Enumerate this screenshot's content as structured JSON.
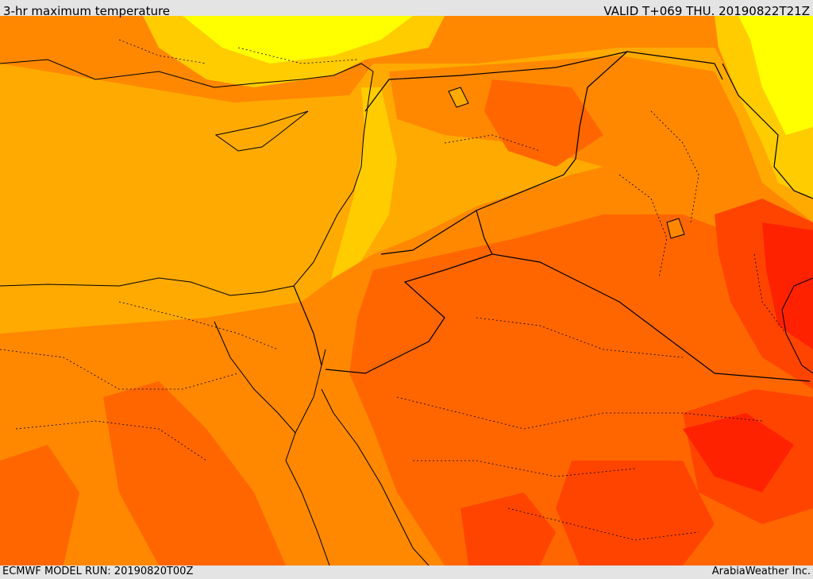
{
  "header": {
    "title": "3-hr maximum temperature",
    "valid": "VALID T+069 THU. 20190822T21Z"
  },
  "footer": {
    "model_run": "ECMWF MODEL RUN: 20190820T00Z",
    "credit": "ArabiaWeather Inc."
  },
  "colors": {
    "yellow": "#ffff00",
    "gold": "#ffcc00",
    "amber": "#ffaa00",
    "orange": "#ff8800",
    "dark_orange": "#ff6600",
    "red_orange": "#ff4400",
    "red": "#ff2200",
    "border": "#000000"
  }
}
